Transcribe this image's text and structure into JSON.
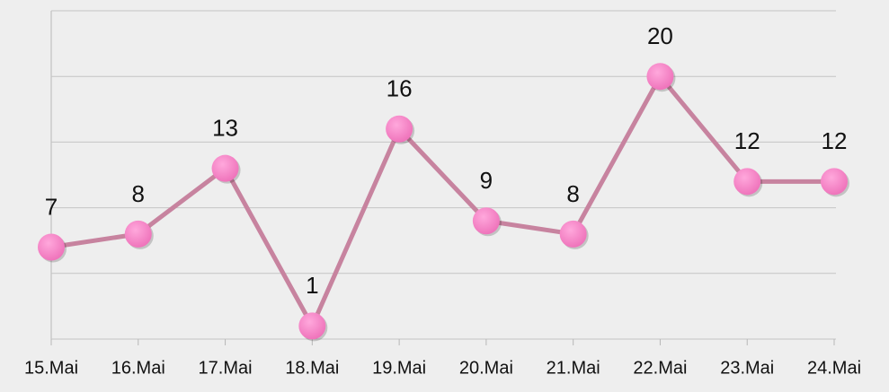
{
  "chart_data": {
    "type": "line",
    "categories": [
      "15.Mai",
      "16.Mai",
      "17.Mai",
      "18.Mai",
      "19.Mai",
      "20.Mai",
      "21.Mai",
      "22.Mai",
      "23.Mai",
      "24.Mai"
    ],
    "values": [
      7,
      8,
      13,
      1,
      16,
      9,
      8,
      20,
      12,
      12
    ],
    "line_color": "#c7839f",
    "marker_color": "#f07cbf",
    "ylim": [
      0,
      25
    ],
    "yticks": [
      0,
      5,
      10,
      15,
      20,
      25
    ],
    "grid": true
  }
}
